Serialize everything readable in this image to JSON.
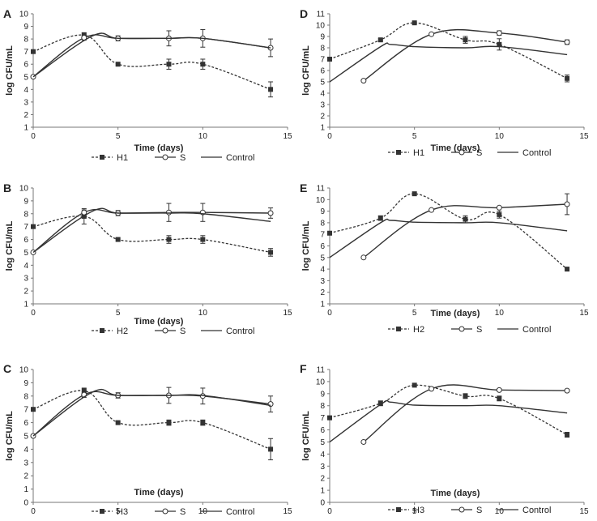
{
  "chart_data": [
    {
      "panel": "A",
      "type": "line",
      "xlabel": "Time (days)",
      "ylabel": "log CFU/mL",
      "xlim": [
        0,
        15
      ],
      "ylim": [
        1,
        10
      ],
      "xticks": [
        "0",
        "5",
        "10",
        "15"
      ],
      "yticks": [
        "1",
        "2",
        "3",
        "4",
        "5",
        "6",
        "7",
        "8",
        "9",
        "10"
      ],
      "series": [
        {
          "name": "H1",
          "style": "dashed",
          "marker": "square",
          "x": [
            0,
            3,
            5,
            8,
            10,
            14
          ],
          "y": [
            7,
            8.3,
            6,
            6,
            6,
            4
          ],
          "err": [
            0,
            0.2,
            0,
            0.4,
            0.4,
            0.6
          ]
        },
        {
          "name": "S",
          "style": "solid",
          "marker": "circle",
          "x": [
            0,
            3,
            5,
            8,
            10,
            14
          ],
          "y": [
            5,
            8.1,
            8.05,
            8.05,
            8.05,
            7.3
          ],
          "err": [
            0,
            0.2,
            0.2,
            0.6,
            0.7,
            0.7
          ]
        },
        {
          "name": "Control",
          "style": "solid",
          "marker": "none",
          "x": [
            0,
            3.5,
            5,
            8,
            10,
            14
          ],
          "y": [
            5,
            8.25,
            8.05,
            8.05,
            8.05,
            7.3
          ],
          "err": []
        }
      ]
    },
    {
      "panel": "D",
      "type": "line",
      "xlabel": "Time (days)",
      "ylabel": "log CFU/mL",
      "xlim": [
        0,
        15
      ],
      "ylim": [
        1,
        11
      ],
      "xticks": [
        "0",
        "5",
        "10",
        "15"
      ],
      "yticks": [
        "1",
        "2",
        "3",
        "4",
        "5",
        "6",
        "7",
        "8",
        "9",
        "10",
        "11"
      ],
      "series": [
        {
          "name": "H1",
          "style": "dashed",
          "marker": "square",
          "x": [
            0,
            3,
            5,
            8,
            10,
            14
          ],
          "y": [
            7,
            8.7,
            10.2,
            8.7,
            8.3,
            5.3
          ],
          "err": [
            0,
            0.1,
            0,
            0.3,
            0.5,
            0.3
          ]
        },
        {
          "name": "S",
          "style": "solid",
          "marker": "circle",
          "x": [
            2,
            6,
            10,
            14
          ],
          "y": [
            5.1,
            9.2,
            9.3,
            8.5
          ],
          "err": [
            0,
            0,
            0.2,
            0.2
          ]
        },
        {
          "name": "Control",
          "style": "solid",
          "marker": "none",
          "x": [
            0,
            3,
            3.6,
            5,
            8,
            10,
            14
          ],
          "y": [
            5,
            8.1,
            8.3,
            8.1,
            8.0,
            8.1,
            7.4
          ],
          "err": []
        }
      ]
    },
    {
      "panel": "B",
      "type": "line",
      "xlabel": "Time (days)",
      "ylabel": "log CFU/mL",
      "xlim": [
        0,
        15
      ],
      "ylim": [
        1,
        10
      ],
      "xticks": [
        "0",
        "5",
        "10",
        "15"
      ],
      "yticks": [
        "1",
        "2",
        "3",
        "4",
        "5",
        "6",
        "7",
        "8",
        "9",
        "10"
      ],
      "series": [
        {
          "name": "H2",
          "style": "dashed",
          "marker": "square",
          "x": [
            0,
            3,
            5,
            8,
            10,
            14
          ],
          "y": [
            7,
            7.8,
            6,
            6,
            6,
            5
          ],
          "err": [
            0,
            0.6,
            0,
            0.3,
            0.3,
            0.3
          ]
        },
        {
          "name": "S",
          "style": "solid",
          "marker": "circle",
          "x": [
            0,
            3,
            5,
            8,
            10,
            14
          ],
          "y": [
            5,
            8.1,
            8.05,
            8.1,
            8.1,
            8.05
          ],
          "err": [
            0,
            0.2,
            0.2,
            0.7,
            0.7,
            0.4
          ]
        },
        {
          "name": "Control",
          "style": "solid",
          "marker": "none",
          "x": [
            0,
            3.5,
            5,
            8,
            10,
            14
          ],
          "y": [
            5,
            8.2,
            8.05,
            8.05,
            8.0,
            7.4
          ],
          "err": []
        }
      ]
    },
    {
      "panel": "E",
      "type": "line",
      "xlabel": "Time (days)",
      "ylabel": "log CFU/mL",
      "xlim": [
        0,
        15
      ],
      "ylim": [
        1,
        11
      ],
      "xticks": [
        "0",
        "5",
        "10",
        "15"
      ],
      "yticks": [
        "1",
        "2",
        "3",
        "4",
        "5",
        "6",
        "7",
        "8",
        "9",
        "10",
        "11"
      ],
      "series": [
        {
          "name": "H2",
          "style": "dashed",
          "marker": "square",
          "x": [
            0,
            3,
            5,
            8,
            10,
            14
          ],
          "y": [
            7.1,
            8.4,
            10.5,
            8.3,
            8.7,
            4
          ],
          "err": [
            0,
            0.2,
            0,
            0.3,
            0.3,
            0
          ]
        },
        {
          "name": "S",
          "style": "solid",
          "marker": "circle",
          "x": [
            2,
            6,
            10,
            14
          ],
          "y": [
            5,
            9.1,
            9.3,
            9.6
          ],
          "err": [
            0,
            0,
            0,
            0.9
          ]
        },
        {
          "name": "Control",
          "style": "solid",
          "marker": "none",
          "x": [
            0,
            3,
            3.6,
            5,
            8,
            10,
            14
          ],
          "y": [
            5,
            8.0,
            8.2,
            8.05,
            8.0,
            8.0,
            7.3
          ],
          "err": []
        }
      ]
    },
    {
      "panel": "C",
      "type": "line",
      "xlabel": "Time (days)",
      "ylabel": "log CFU/mL",
      "xlim": [
        0,
        15
      ],
      "ylim": [
        0,
        10
      ],
      "xticks": [
        "0",
        "5",
        "10",
        "15"
      ],
      "yticks": [
        "0",
        "1",
        "2",
        "3",
        "4",
        "5",
        "6",
        "7",
        "8",
        "9",
        "10"
      ],
      "series": [
        {
          "name": "H3",
          "style": "dashed",
          "marker": "square",
          "x": [
            0,
            3,
            5,
            8,
            10,
            14
          ],
          "y": [
            7,
            8.4,
            6,
            6,
            6,
            4
          ],
          "err": [
            0,
            0.2,
            0,
            0.2,
            0.2,
            0.8
          ]
        },
        {
          "name": "S",
          "style": "solid",
          "marker": "circle",
          "x": [
            0,
            3,
            5,
            8,
            10,
            14
          ],
          "y": [
            5,
            8.1,
            8.05,
            8.05,
            8.0,
            7.4
          ],
          "err": [
            0,
            0.2,
            0.2,
            0.6,
            0.6,
            0.6
          ]
        },
        {
          "name": "Control",
          "style": "solid",
          "marker": "none",
          "x": [
            0,
            3.5,
            5,
            8,
            10,
            14
          ],
          "y": [
            5,
            8.3,
            8.05,
            8.05,
            8.05,
            7.3
          ],
          "err": []
        }
      ]
    },
    {
      "panel": "F",
      "type": "line",
      "xlabel": "Time (days)",
      "ylabel": "log CFU/mL",
      "xlim": [
        0,
        15
      ],
      "ylim": [
        0,
        11
      ],
      "xticks": [
        "0",
        "5",
        "10",
        "15"
      ],
      "yticks": [
        "0",
        "1",
        "2",
        "3",
        "4",
        "5",
        "6",
        "7",
        "8",
        "9",
        "10",
        "11"
      ],
      "series": [
        {
          "name": "H3",
          "style": "dashed",
          "marker": "square",
          "x": [
            0,
            3,
            5,
            8,
            10,
            14
          ],
          "y": [
            7,
            8.2,
            9.7,
            8.8,
            8.6,
            5.6
          ],
          "err": [
            0,
            0.2,
            0,
            0.2,
            0.2,
            0.2
          ]
        },
        {
          "name": "S",
          "style": "solid",
          "marker": "circle",
          "x": [
            2,
            6,
            10,
            14
          ],
          "y": [
            5,
            9.4,
            9.3,
            9.25
          ],
          "err": [
            0,
            0,
            0.1,
            0.1
          ]
        },
        {
          "name": "Control",
          "style": "solid",
          "marker": "none",
          "x": [
            0,
            3,
            3.6,
            5,
            8,
            10,
            14
          ],
          "y": [
            5,
            8.1,
            8.3,
            8.05,
            8.0,
            8.0,
            7.4
          ],
          "err": []
        }
      ]
    }
  ]
}
